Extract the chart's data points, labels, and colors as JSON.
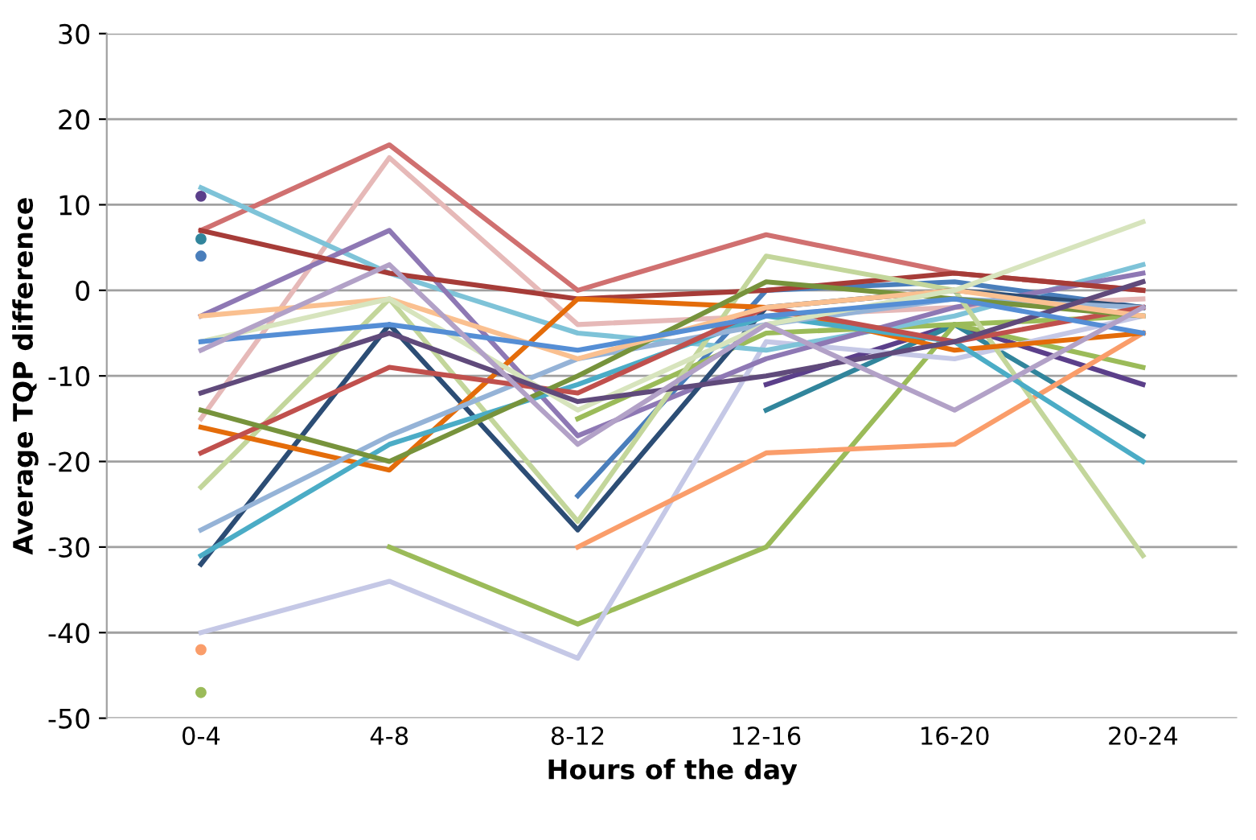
{
  "chart_data": {
    "type": "line",
    "xlabel": "Hours of the day",
    "ylabel": "Average TQP difference",
    "categories": [
      "0-4",
      "4-8",
      "8-12",
      "12-16",
      "16-20",
      "20-24"
    ],
    "ylim": [
      -50,
      30
    ],
    "yticks": [
      -50,
      -40,
      -30,
      -20,
      -10,
      0,
      10,
      20,
      30
    ],
    "grid": "y",
    "legend": false,
    "marker": "none",
    "line_style": "solid",
    "series": [
      {
        "color": "#5b3f8a",
        "values": [
          11,
          null,
          null,
          -11,
          -4,
          -11
        ]
      },
      {
        "color": "#4a7ebb",
        "values": [
          4,
          null,
          -24,
          0,
          1,
          -2
        ]
      },
      {
        "color": "#31859c",
        "values": [
          6,
          null,
          null,
          -14,
          -4,
          -17
        ]
      },
      {
        "color": "#9bbb59",
        "values": [
          -47,
          null,
          -15,
          -5,
          -4,
          -3
        ]
      },
      {
        "color": "#9bbb59",
        "values": [
          null,
          -30,
          -39,
          -30,
          -4,
          -9
        ]
      },
      {
        "color": "#c5c8e6",
        "values": [
          -40,
          -34,
          -43,
          -6,
          -8,
          -3
        ]
      },
      {
        "color": "#fa9d6a",
        "values": [
          -42,
          null,
          -30,
          -19,
          -18,
          -5
        ]
      },
      {
        "color": "#d07070",
        "values": [
          7,
          17,
          0,
          6.5,
          2,
          0
        ]
      },
      {
        "color": "#e6b9b8",
        "values": [
          -15,
          15.5,
          -4,
          -3,
          -2,
          -1
        ]
      },
      {
        "color": "#7ec3d8",
        "values": [
          12,
          2,
          -5,
          -7,
          -3,
          3
        ]
      },
      {
        "color": "#8e78b4",
        "values": [
          -3,
          7,
          -17,
          -8,
          -2,
          2
        ]
      },
      {
        "color": "#a63c38",
        "values": [
          7,
          2,
          -1,
          0,
          2,
          0
        ]
      },
      {
        "color": "#c3d69b",
        "values": [
          -23,
          -1,
          -27,
          4,
          0,
          -31
        ]
      },
      {
        "color": "#2c4d75",
        "values": [
          -32,
          -4,
          -28,
          -2,
          0,
          -2
        ]
      },
      {
        "color": "#e46c0a",
        "values": [
          -16,
          -21,
          -1,
          -2,
          -7,
          -5
        ]
      },
      {
        "color": "#4bacc6",
        "values": [
          -31,
          -18,
          -11,
          -3,
          -6,
          -20
        ]
      },
      {
        "color": "#95b3d7",
        "values": [
          -28,
          -17,
          -8,
          -4,
          -1,
          -2
        ]
      },
      {
        "color": "#c0504d",
        "values": [
          -19,
          -9,
          -12,
          -2,
          -6,
          -2
        ]
      },
      {
        "color": "#77933c",
        "values": [
          -14,
          -20,
          -10,
          1,
          -1,
          -3
        ]
      },
      {
        "color": "#fac090",
        "values": [
          -3,
          -1,
          -8,
          -2,
          0,
          -3
        ]
      },
      {
        "color": "#d7e4bd",
        "values": [
          -6,
          -1,
          -14,
          -4,
          0,
          8
        ]
      },
      {
        "color": "#604a7b",
        "values": [
          -12,
          -5,
          -13,
          -10,
          -6,
          1
        ]
      },
      {
        "color": "#558ed5",
        "values": [
          -6,
          -4,
          -7,
          -3,
          -1,
          -5
        ]
      },
      {
        "color": "#b2a1c7",
        "values": [
          -7,
          3,
          -18,
          -4,
          -14,
          -2
        ]
      }
    ]
  }
}
